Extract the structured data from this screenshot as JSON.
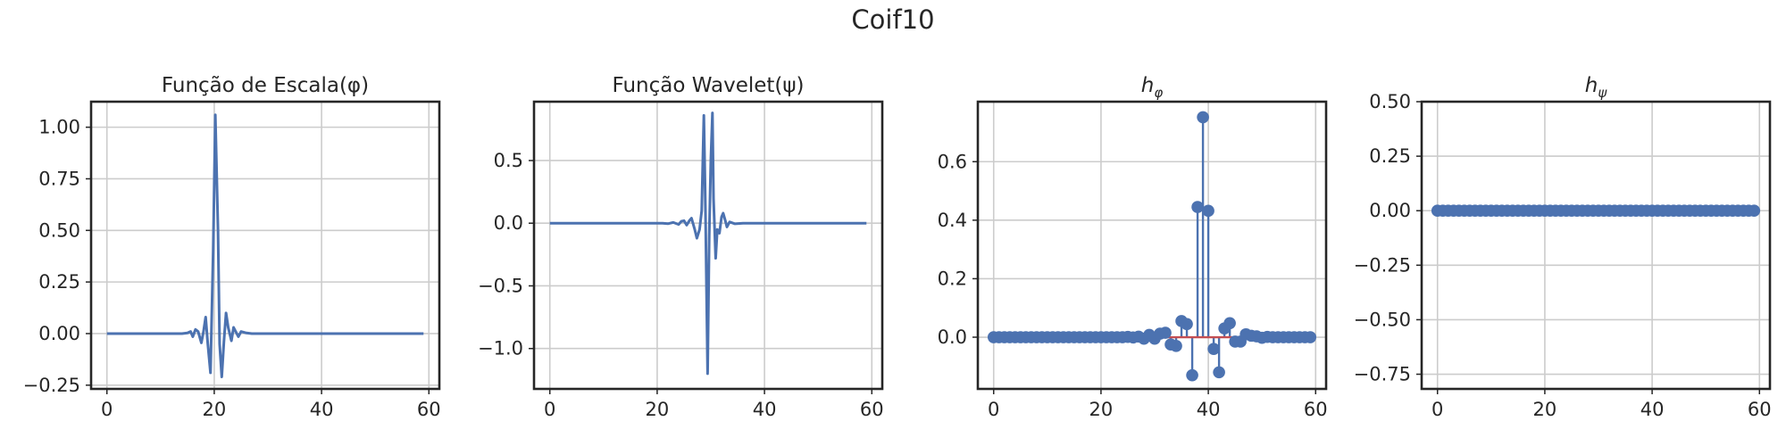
{
  "figure": {
    "suptitle": "Coif10"
  },
  "colors": {
    "series": "#4c72b0",
    "baseline": "#c44e52",
    "grid": "#cccccc",
    "frame": "#262626",
    "text": "#262626"
  },
  "chart_data": [
    {
      "type": "line",
      "title": "Função de Escala(φ)",
      "xlim": [
        -2.95,
        61.95
      ],
      "ylim": [
        -0.2681,
        1.1237
      ],
      "xticks": [
        0,
        20,
        40,
        60
      ],
      "yticks": [
        -0.25,
        0.0,
        0.25,
        0.5,
        0.75,
        1.0
      ],
      "ytick_labels": [
        "−0.25",
        "0.00",
        "0.25",
        "0.50",
        "0.75",
        "1.00"
      ],
      "grid": true,
      "series": [
        {
          "points": [
            [
              0,
              0
            ],
            [
              14,
              0
            ],
            [
              15,
              0.003
            ],
            [
              15.6,
              0.01
            ],
            [
              16,
              -0.015
            ],
            [
              16.5,
              0.02
            ],
            [
              17,
              0.01
            ],
            [
              17.6,
              -0.045
            ],
            [
              18,
              0.01
            ],
            [
              18.4,
              0.08
            ],
            [
              18.8,
              -0.05
            ],
            [
              19.3,
              -0.19
            ],
            [
              19.8,
              0.4
            ],
            [
              20.2,
              1.06
            ],
            [
              20.7,
              0.5
            ],
            [
              21,
              -0.05
            ],
            [
              21.4,
              -0.21
            ],
            [
              21.8,
              -0.04
            ],
            [
              22.2,
              0.1
            ],
            [
              22.6,
              0.03
            ],
            [
              23.2,
              -0.035
            ],
            [
              23.6,
              0.03
            ],
            [
              24,
              0.01
            ],
            [
              24.5,
              -0.015
            ],
            [
              25,
              0.01
            ],
            [
              26,
              0.003
            ],
            [
              27,
              0
            ],
            [
              59,
              0
            ]
          ]
        }
      ]
    },
    {
      "type": "line",
      "title": "Função Wavelet(ψ)",
      "xlim": [
        -2.95,
        61.95
      ],
      "ylim": [
        -1.3222,
        0.9695
      ],
      "xticks": [
        0,
        20,
        40,
        60
      ],
      "yticks": [
        -1.0,
        -0.5,
        0.0,
        0.5
      ],
      "ytick_labels": [
        "−1.0",
        "−0.5",
        "0.0",
        "0.5"
      ],
      "grid": true,
      "series": [
        {
          "points": [
            [
              0,
              0
            ],
            [
              21,
              0
            ],
            [
              22,
              -0.004
            ],
            [
              23,
              0.006
            ],
            [
              24,
              -0.01
            ],
            [
              24.5,
              0.015
            ],
            [
              25,
              0.02
            ],
            [
              25.5,
              -0.015
            ],
            [
              26,
              0.02
            ],
            [
              26.4,
              0.04
            ],
            [
              27,
              -0.05
            ],
            [
              27.4,
              -0.12
            ],
            [
              27.9,
              -0.05
            ],
            [
              28.3,
              0.1
            ],
            [
              28.7,
              0.86
            ],
            [
              29,
              0.1
            ],
            [
              29.4,
              -1.2
            ],
            [
              29.7,
              -0.1
            ],
            [
              30,
              0.5
            ],
            [
              30.3,
              0.88
            ],
            [
              30.5,
              0.2
            ],
            [
              30.9,
              -0.28
            ],
            [
              31.2,
              -0.05
            ],
            [
              31.6,
              -0.08
            ],
            [
              32,
              0.05
            ],
            [
              32.3,
              0.08
            ],
            [
              32.7,
              0.02
            ],
            [
              33,
              -0.03
            ],
            [
              33.5,
              0.01
            ],
            [
              34.5,
              -0.005
            ],
            [
              36,
              0
            ],
            [
              59,
              0
            ]
          ]
        }
      ]
    },
    {
      "type": "stem",
      "title": "hφ",
      "title_main": "h",
      "title_sub": "φ",
      "xlim": [
        -2.95,
        61.95
      ],
      "ylim": [
        -0.1768,
        0.8051
      ],
      "xticks": [
        0,
        20,
        40,
        60
      ],
      "yticks": [
        0.0,
        0.2,
        0.4,
        0.6
      ],
      "ytick_labels": [
        "0.0",
        "0.2",
        "0.4",
        "0.6"
      ],
      "grid": true,
      "baseline": 0,
      "x": [
        0,
        1,
        2,
        3,
        4,
        5,
        6,
        7,
        8,
        9,
        10,
        11,
        12,
        13,
        14,
        15,
        16,
        17,
        18,
        19,
        20,
        21,
        22,
        23,
        24,
        25,
        26,
        27,
        28,
        29,
        30,
        31,
        32,
        33,
        34,
        35,
        36,
        37,
        38,
        39,
        40,
        41,
        42,
        43,
        44,
        45,
        46,
        47,
        48,
        49,
        50,
        51,
        52,
        53,
        54,
        55,
        56,
        57,
        58,
        59
      ],
      "values": [
        0,
        0,
        0,
        0,
        0,
        0,
        0,
        0,
        0,
        0,
        0,
        0,
        0,
        0,
        0,
        0,
        0,
        0,
        0,
        0,
        0,
        0,
        0,
        0,
        0,
        0.001,
        -0.001,
        0.002,
        -0.005,
        0.008,
        -0.005,
        0.012,
        0.015,
        -0.025,
        -0.03,
        0.055,
        0.045,
        -0.13,
        0.445,
        0.752,
        0.432,
        -0.04,
        -0.12,
        0.03,
        0.048,
        -0.015,
        -0.015,
        0.01,
        0.005,
        0.003,
        -0.002,
        0.001,
        0,
        0,
        0,
        0,
        0,
        0,
        0,
        0
      ]
    },
    {
      "type": "stem",
      "title": "hψ",
      "title_main": "h",
      "title_sub": "ψ",
      "xlim": [
        -2.95,
        61.95
      ],
      "ylim": [
        -0.8174,
        0.5
      ],
      "xticks": [
        0,
        20,
        40,
        60
      ],
      "yticks": [
        -0.75,
        -0.5,
        -0.25,
        0.0,
        0.25,
        0.5
      ],
      "ytick_labels": [
        "−0.75",
        "−0.50",
        "−0.25",
        "0.00",
        "0.25",
        "0.50"
      ],
      "grid": true,
      "baseline": 0,
      "x": [
        0,
        1,
        2,
        3,
        4,
        5,
        6,
        7,
        8,
        9,
        10,
        11,
        12,
        13,
        14,
        15,
        16,
        17,
        18,
        19,
        20,
        21,
        22,
        23,
        24,
        25,
        26,
        27,
        28,
        29,
        30,
        31,
        32,
        33,
        34,
        35,
        36,
        37,
        38,
        39,
        40,
        41,
        42,
        43,
        44,
        45,
        46,
        47,
        48,
        49,
        50,
        51,
        52,
        53,
        54,
        55,
        56,
        57,
        58,
        59
      ],
      "values": [
        0,
        0,
        0,
        0,
        0,
        0,
        0,
        0,
        0,
        0,
        0,
        0,
        0,
        0,
        0,
        0,
        0,
        0,
        0,
        0,
        0,
        0,
        0,
        0,
        0,
        0,
        0,
        0,
        0,
        0,
        0,
        0,
        0,
        0,
        0,
        0,
        0,
        0,
        0,
        0,
        0,
        0,
        0,
        0,
        0,
        0,
        0,
        0,
        0,
        0,
        0,
        0,
        0,
        0,
        0,
        0,
        0,
        0,
        0,
        0
      ]
    }
  ]
}
